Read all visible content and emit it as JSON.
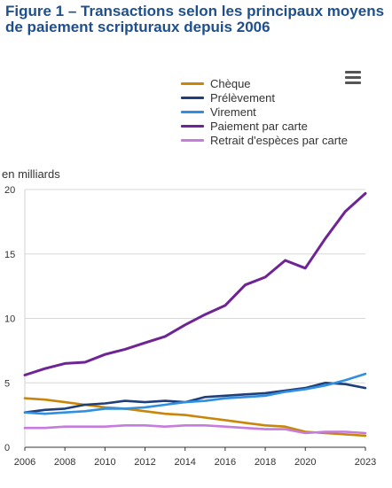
{
  "title": "Figure 1 – Transactions selon les principaux moyens de paiement scripturaux depuis 2006",
  "menu_icon": "hamburger-menu-icon",
  "chart_data": {
    "type": "line",
    "title": "Figure 1 – Transactions selon les principaux moyens de paiement scripturaux depuis 2006",
    "ylabel": "en milliards",
    "xlabel": "",
    "x": [
      2006,
      2007,
      2008,
      2009,
      2010,
      2011,
      2012,
      2013,
      2014,
      2015,
      2016,
      2017,
      2018,
      2019,
      2020,
      2021,
      2022,
      2023
    ],
    "xticks": [
      "2006",
      "2008",
      "2010",
      "2012",
      "2014",
      "2016",
      "2018",
      "2020",
      "2023"
    ],
    "yticks": [
      "0",
      "5",
      "10",
      "15",
      "20"
    ],
    "xlim": [
      2006,
      2023
    ],
    "ylim": [
      0,
      20
    ],
    "grid": "horizontal",
    "legend_position": "top-right",
    "series": [
      {
        "name": "Chèque",
        "color": "#c8860b",
        "values": [
          3.8,
          3.7,
          3.5,
          3.3,
          3.1,
          3.0,
          2.8,
          2.6,
          2.5,
          2.3,
          2.1,
          1.9,
          1.7,
          1.6,
          1.2,
          1.1,
          1.0,
          0.9
        ]
      },
      {
        "name": "Prélèvement",
        "color": "#1f3f7a",
        "values": [
          2.7,
          2.9,
          3.0,
          3.3,
          3.4,
          3.6,
          3.5,
          3.6,
          3.5,
          3.9,
          4.0,
          4.1,
          4.2,
          4.4,
          4.6,
          5.0,
          4.9,
          4.6
        ]
      },
      {
        "name": "Virement",
        "color": "#2f8fe0",
        "values": [
          2.7,
          2.6,
          2.7,
          2.8,
          3.0,
          3.0,
          3.1,
          3.3,
          3.5,
          3.6,
          3.8,
          3.9,
          4.0,
          4.3,
          4.5,
          4.8,
          5.2,
          5.7
        ]
      },
      {
        "name": "Paiement par carte",
        "color": "#6f2496",
        "values": [
          5.6,
          6.1,
          6.5,
          6.6,
          7.2,
          7.6,
          8.1,
          8.6,
          9.5,
          10.3,
          11.0,
          12.6,
          13.2,
          14.5,
          13.9,
          16.2,
          18.3,
          19.7
        ]
      },
      {
        "name": "Retrait d'espèces par carte",
        "color": "#c77bdd",
        "values": [
          1.5,
          1.5,
          1.6,
          1.6,
          1.6,
          1.7,
          1.7,
          1.6,
          1.7,
          1.7,
          1.6,
          1.5,
          1.4,
          1.4,
          1.1,
          1.2,
          1.2,
          1.1
        ]
      }
    ]
  }
}
